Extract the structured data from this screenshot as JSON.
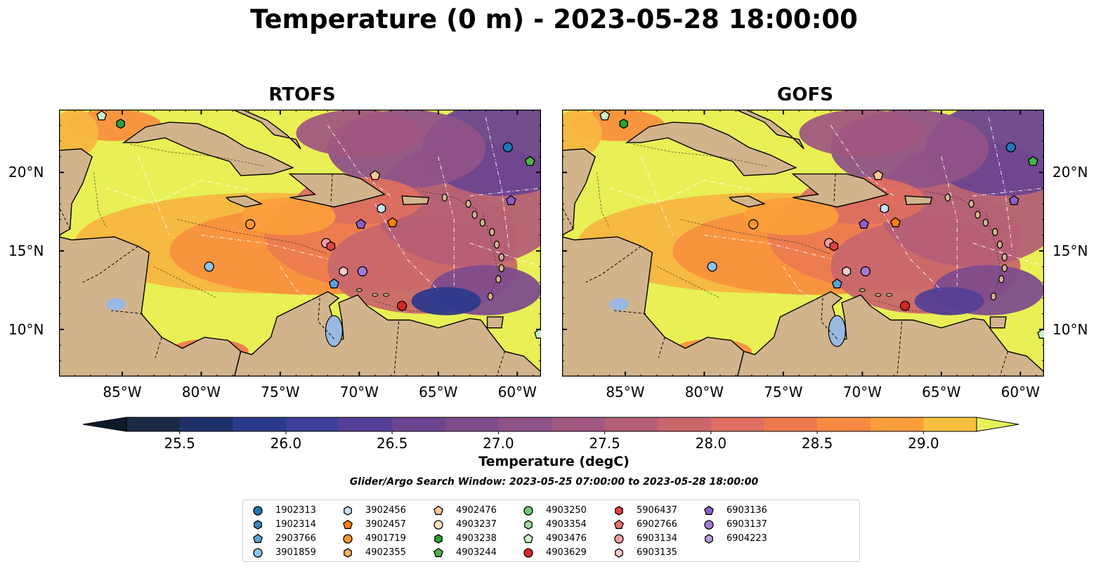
{
  "title": "Temperature (0 m) - 2023-05-28 18:00:00",
  "panels": [
    {
      "id": "rtofs",
      "title": "RTOFS"
    },
    {
      "id": "gofs",
      "title": "GOFS"
    }
  ],
  "map_extent": {
    "lon": [
      -89,
      -58.5
    ],
    "lat": [
      7,
      24
    ]
  },
  "lon_ticks": [
    "85°W",
    "80°W",
    "75°W",
    "70°W",
    "65°W",
    "60°W"
  ],
  "lon_tick_values": [
    -85,
    -80,
    -75,
    -70,
    -65,
    -60
  ],
  "lat_ticks": [
    "20°N",
    "15°N",
    "10°N"
  ],
  "lat_tick_values": [
    20,
    15,
    10
  ],
  "colorbar": {
    "label": "Temperature (degC)",
    "tick_labels": [
      "25.5",
      "26.0",
      "26.5",
      "27.0",
      "27.5",
      "28.0",
      "28.5",
      "29.0"
    ],
    "tick_values": [
      25.5,
      26.0,
      26.5,
      27.0,
      27.5,
      28.0,
      28.5,
      29.0
    ],
    "range": [
      25.25,
      29.25
    ],
    "extend": "both",
    "colors": [
      "#1a2a44",
      "#20306a",
      "#2c3a8c",
      "#3f3f9a",
      "#553f96",
      "#6c4590",
      "#7e4c8c",
      "#8f5288",
      "#a0587f",
      "#b45f76",
      "#c9676c",
      "#dc6f60",
      "#ec7a50",
      "#f88a42",
      "#fb9e3b",
      "#f6c040"
    ],
    "under_color": "#0b1b2a",
    "over_color": "#e7f05a"
  },
  "search_window": "Glider/Argo Search Window: 2023-05-25 07:00:00 to 2023-05-28 18:00:00",
  "legend": [
    {
      "id": "1902313",
      "marker": "circle",
      "color": "#1f77b4"
    },
    {
      "id": "1902314",
      "marker": "hexagon",
      "color": "#3a87c6"
    },
    {
      "id": "2903766",
      "marker": "pentagon",
      "color": "#5aa0d6"
    },
    {
      "id": "3901859",
      "marker": "circle",
      "color": "#8ec4ec"
    },
    {
      "id": "3902456",
      "marker": "hexagon",
      "color": "#c6e4f6"
    },
    {
      "id": "3902457",
      "marker": "pentagon",
      "color": "#ff7f0e"
    },
    {
      "id": "4901719",
      "marker": "circle",
      "color": "#ff9631"
    },
    {
      "id": "4902355",
      "marker": "hexagon",
      "color": "#ffb062"
    },
    {
      "id": "4902476",
      "marker": "pentagon",
      "color": "#ffc795"
    },
    {
      "id": "4903237",
      "marker": "circle",
      "color": "#ffe0c4"
    },
    {
      "id": "4903238",
      "marker": "hexagon",
      "color": "#2ca02c"
    },
    {
      "id": "4903244",
      "marker": "pentagon",
      "color": "#4cb34c"
    },
    {
      "id": "4903250",
      "marker": "circle",
      "color": "#74c774"
    },
    {
      "id": "4903354",
      "marker": "hexagon",
      "color": "#a1dba1"
    },
    {
      "id": "4903476",
      "marker": "pentagon",
      "color": "#cdf0c8"
    },
    {
      "id": "4903629",
      "marker": "circle",
      "color": "#d62728"
    },
    {
      "id": "5906437",
      "marker": "hexagon",
      "color": "#e04444"
    },
    {
      "id": "6902766",
      "marker": "pentagon",
      "color": "#e87070"
    },
    {
      "id": "6903134",
      "marker": "circle",
      "color": "#f29e9e"
    },
    {
      "id": "6903135",
      "marker": "hexagon",
      "color": "#fbcaca"
    },
    {
      "id": "6903136",
      "marker": "pentagon",
      "color": "#8c5ec8"
    },
    {
      "id": "6903137",
      "marker": "circle",
      "color": "#a47cd4"
    },
    {
      "id": "6904223",
      "marker": "hexagon",
      "color": "#bc9ce0"
    }
  ],
  "observations": [
    {
      "id": "1902313",
      "lon": -60.6,
      "lat": 21.6
    },
    {
      "id": "4903244",
      "lon": -59.2,
      "lat": 20.7
    },
    {
      "id": "4903238",
      "lon": -85.1,
      "lat": 23.1
    },
    {
      "id": "4903476",
      "lon": -86.3,
      "lat": 23.6
    },
    {
      "id": "6903136",
      "lon": -60.4,
      "lat": 18.2
    },
    {
      "id": "4902476",
      "lon": -69.0,
      "lat": 19.8
    },
    {
      "id": "3902456",
      "lon": -68.6,
      "lat": 17.7
    },
    {
      "id": "3902457",
      "lon": -67.9,
      "lat": 16.8
    },
    {
      "id": "6903136",
      "lon": -69.9,
      "lat": 16.7
    },
    {
      "id": "4901719",
      "lon": -76.9,
      "lat": 16.7
    },
    {
      "id": "6903134",
      "lon": -72.1,
      "lat": 15.5
    },
    {
      "id": "5906437",
      "lon": -71.8,
      "lat": 15.3
    },
    {
      "id": "3901859",
      "lon": -79.5,
      "lat": 14.0
    },
    {
      "id": "6903135",
      "lon": -71.0,
      "lat": 13.7
    },
    {
      "id": "6903137",
      "lon": -69.8,
      "lat": 13.7
    },
    {
      "id": "2903766",
      "lon": -71.6,
      "lat": 12.9
    },
    {
      "id": "4903629",
      "lon": -67.3,
      "lat": 11.5
    },
    {
      "id": "4903476",
      "lon": -58.6,
      "lat": 9.7
    }
  ]
}
